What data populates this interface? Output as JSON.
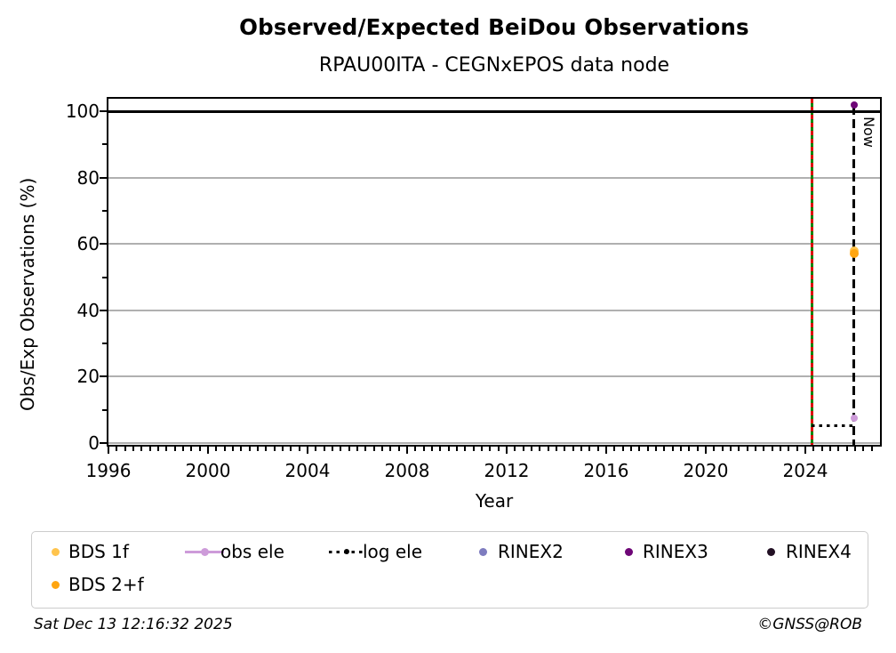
{
  "chart_data": {
    "type": "scatter",
    "title": "Observed/Expected BeiDou Observations",
    "subtitle": "RPAU00ITA - CEGNxEPOS data node",
    "xlabel": "Year",
    "ylabel": "Obs/Exp Observations (%)",
    "xlim": [
      1996,
      2027
    ],
    "ylim": [
      -0.5,
      103.8
    ],
    "x_ticks": [
      1996,
      2000,
      2004,
      2008,
      2012,
      2016,
      2020,
      2024
    ],
    "y_ticks": [
      0,
      20,
      40,
      60,
      80,
      100
    ],
    "grid": true,
    "grid_color": "#b0b0b0",
    "legend_position": "below",
    "series": [
      {
        "name": "BDS 1f",
        "color": "#FFC44D",
        "marker": "dot",
        "points": [
          {
            "x": 2025.95,
            "y": 58.0
          }
        ]
      },
      {
        "name": "BDS 2+f",
        "color": "#FFA510",
        "marker": "dot",
        "points": [
          {
            "x": 2025.95,
            "y": 57.0
          }
        ]
      },
      {
        "name": "obs ele",
        "color": "#CD9BD9",
        "marker": "line-dot",
        "points": [
          {
            "x": 2025.95,
            "y": 7.5
          }
        ]
      },
      {
        "name": "log ele",
        "color": "#000000",
        "marker": "dotted-line-dot",
        "points": [
          {
            "x": 2024.25,
            "y": 5.1
          },
          {
            "x": 2025.95,
            "y": 5.1
          }
        ]
      },
      {
        "name": "RINEX2",
        "color": "#7E7CBF",
        "marker": "dot",
        "points": []
      },
      {
        "name": "RINEX3",
        "color": "#6E0677",
        "marker": "dot",
        "points": [
          {
            "x": 2025.95,
            "y": 101.9
          }
        ]
      },
      {
        "name": "RINEX4",
        "color": "#221024",
        "marker": "dot",
        "points": []
      }
    ],
    "annotations": [
      {
        "type": "vline",
        "x": 2024.25,
        "color": "#008800",
        "overlay_dash_color": "#DD0000",
        "name": "site-event-line"
      },
      {
        "type": "vline",
        "x": 2025.95,
        "color": "#000000",
        "style": "dashed",
        "label": "Now",
        "name": "now-line"
      },
      {
        "type": "hline",
        "y": 100,
        "color": "#000000",
        "name": "hundred-percent-line"
      }
    ]
  },
  "legend": {
    "rows": [
      [
        "BDS 1f",
        "obs ele",
        "log ele",
        "RINEX2",
        "RINEX3",
        "RINEX4"
      ],
      [
        "BDS 2+f"
      ]
    ]
  },
  "footer": {
    "timestamp": "Sat Dec 13 12:16:32 2025",
    "copyright": "©GNSS@ROB"
  }
}
